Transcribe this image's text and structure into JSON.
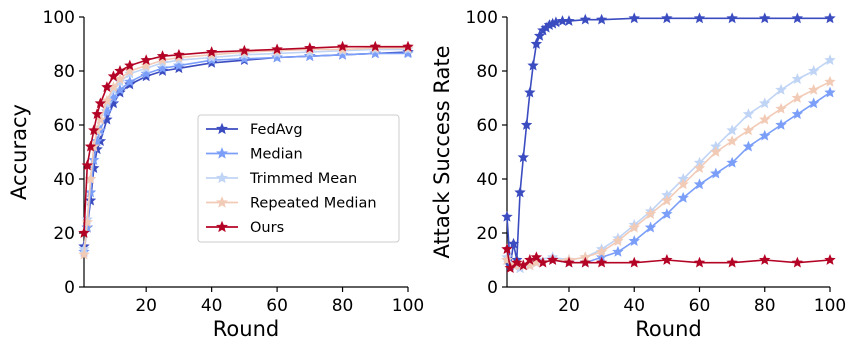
{
  "chart_data": [
    {
      "type": "line",
      "title": "",
      "xlabel": "Round",
      "ylabel": "Accuracy",
      "xlim": [
        1,
        100
      ],
      "ylim": [
        0,
        100
      ],
      "xticks": [
        "20",
        "40",
        "60",
        "80",
        "100"
      ],
      "yticks": [
        "0",
        "20",
        "40",
        "60",
        "80",
        "100"
      ],
      "grid": false,
      "marker": "star",
      "legend": {
        "placement": "center-right",
        "entries": [
          "FedAvg",
          "Median",
          "Trimmed Mean",
          "Repeated Median",
          "Ours"
        ]
      },
      "series": [
        {
          "name": "FedAvg",
          "color": "#3b4cc0",
          "x": [
            1,
            2,
            3,
            4,
            5,
            6,
            8,
            10,
            12,
            15,
            20,
            25,
            30,
            40,
            50,
            60,
            70,
            80,
            90,
            100
          ],
          "y": [
            15,
            22,
            32,
            44,
            51,
            54,
            62,
            68,
            72,
            75,
            78,
            80,
            81,
            83,
            84,
            85,
            85.5,
            86,
            86.5,
            87
          ]
        },
        {
          "name": "Median",
          "color": "#7b9ff9",
          "x": [
            1,
            2,
            3,
            4,
            5,
            6,
            8,
            10,
            12,
            15,
            20,
            25,
            30,
            40,
            50,
            60,
            70,
            80,
            90,
            100
          ],
          "y": [
            13,
            22,
            35,
            47,
            54,
            58,
            65,
            70,
            73,
            76,
            79,
            81,
            82,
            84,
            84.5,
            85,
            85.5,
            86,
            86.5,
            86.5
          ]
        },
        {
          "name": "Trimmed Mean",
          "color": "#c0d4f5",
          "x": [
            1,
            2,
            3,
            4,
            5,
            6,
            8,
            10,
            12,
            15,
            20,
            25,
            30,
            40,
            50,
            60,
            70,
            80,
            90,
            100
          ],
          "y": [
            14,
            25,
            40,
            52,
            58,
            62,
            68,
            73,
            76,
            79,
            81,
            83,
            84,
            85,
            86,
            86.5,
            87,
            87.5,
            88,
            88
          ]
        },
        {
          "name": "Repeated Median",
          "color": "#f2cbb7",
          "x": [
            1,
            2,
            3,
            4,
            5,
            6,
            8,
            10,
            12,
            15,
            20,
            25,
            30,
            40,
            50,
            60,
            70,
            80,
            90,
            100
          ],
          "y": [
            12,
            24,
            40,
            52,
            58,
            62,
            69,
            74,
            77,
            80,
            82,
            84,
            85,
            86,
            87,
            87.5,
            88,
            88,
            88.5,
            88.5
          ]
        },
        {
          "name": "Ours",
          "color": "#b40426",
          "x": [
            1,
            2,
            3,
            4,
            5,
            6,
            8,
            10,
            12,
            15,
            20,
            25,
            30,
            40,
            50,
            60,
            70,
            80,
            90,
            100
          ],
          "y": [
            20,
            45,
            52,
            58,
            64,
            68,
            74,
            78,
            80,
            82,
            84,
            85.5,
            86,
            87,
            87.5,
            88,
            88.5,
            89,
            89,
            89
          ]
        }
      ]
    },
    {
      "type": "line",
      "title": "",
      "xlabel": "Round",
      "ylabel": "Attack Success Rate",
      "xlim": [
        1,
        100
      ],
      "ylim": [
        0,
        100
      ],
      "xticks": [
        "20",
        "40",
        "60",
        "80",
        "100"
      ],
      "yticks": [
        "0",
        "20",
        "40",
        "60",
        "80",
        "100"
      ],
      "grid": false,
      "marker": "star",
      "series": [
        {
          "name": "FedAvg",
          "color": "#3b4cc0",
          "x": [
            1,
            2,
            3,
            4,
            5,
            6,
            7,
            8,
            9,
            10,
            11,
            12,
            13,
            14,
            15,
            16,
            18,
            20,
            25,
            30,
            40,
            50,
            60,
            70,
            80,
            90,
            100
          ],
          "y": [
            26,
            8,
            16,
            10,
            35,
            48,
            60,
            72,
            82,
            90,
            93,
            95,
            96,
            97,
            97.5,
            98,
            98.5,
            98.5,
            99,
            99,
            99.5,
            99.5,
            99.5,
            99.5,
            99.5,
            99.5,
            99.5
          ]
        },
        {
          "name": "Median",
          "color": "#7b9ff9",
          "x": [
            1,
            3,
            5,
            8,
            10,
            15,
            20,
            25,
            30,
            35,
            40,
            45,
            50,
            55,
            60,
            65,
            70,
            75,
            80,
            85,
            90,
            95,
            100
          ],
          "y": [
            10,
            8,
            7,
            8,
            9,
            10,
            9,
            9,
            11,
            13,
            17,
            22,
            27,
            33,
            38,
            42,
            46,
            52,
            56,
            60,
            64,
            68,
            72
          ]
        },
        {
          "name": "Trimmed Mean",
          "color": "#c0d4f5",
          "x": [
            1,
            3,
            5,
            8,
            10,
            15,
            20,
            25,
            30,
            35,
            40,
            45,
            50,
            55,
            60,
            65,
            70,
            75,
            80,
            85,
            90,
            95,
            100
          ],
          "y": [
            11,
            8,
            7,
            8,
            10,
            11,
            10,
            11,
            14,
            18,
            23,
            28,
            34,
            40,
            46,
            52,
            58,
            64,
            68,
            73,
            77,
            80,
            84
          ]
        },
        {
          "name": "Repeated Median",
          "color": "#f2cbb7",
          "x": [
            1,
            3,
            5,
            8,
            10,
            15,
            20,
            25,
            30,
            35,
            40,
            45,
            50,
            55,
            60,
            65,
            70,
            75,
            80,
            85,
            90,
            95,
            100
          ],
          "y": [
            10,
            8,
            8,
            8,
            9,
            10,
            10,
            11,
            13,
            17,
            22,
            27,
            32,
            38,
            44,
            50,
            54,
            58,
            62,
            66,
            70,
            73,
            76
          ]
        },
        {
          "name": "Ours",
          "color": "#b40426",
          "x": [
            1,
            2,
            4,
            6,
            8,
            10,
            12,
            15,
            20,
            25,
            30,
            40,
            50,
            60,
            70,
            80,
            90,
            100
          ],
          "y": [
            14,
            7,
            9,
            8,
            10,
            11,
            9,
            10,
            9,
            9,
            9,
            9,
            10,
            9,
            9,
            10,
            9,
            10
          ]
        }
      ]
    }
  ]
}
